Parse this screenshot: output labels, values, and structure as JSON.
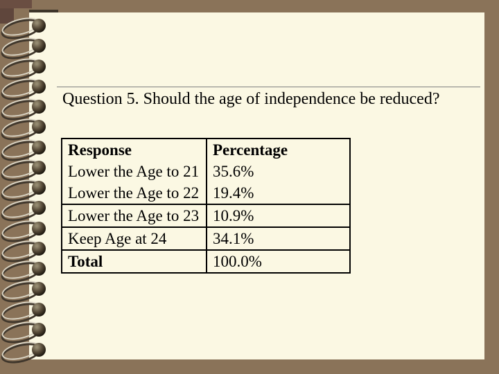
{
  "slide": {
    "title": "Question 5. Should the age of independence be reduced?",
    "table": {
      "header": {
        "response": "Response",
        "percentage": "Percentage"
      },
      "rows": [
        {
          "response": "Lower the Age to 21",
          "percentage": "35.6%"
        },
        {
          "response": "Lower the Age to 22",
          "percentage": "19.4%"
        },
        {
          "response": "Lower the Age to 23",
          "percentage": "10.9%"
        },
        {
          "response": "Keep Age at 24",
          "percentage": "34.1%"
        }
      ],
      "total": {
        "response": "Total",
        "percentage": "100.0%"
      }
    }
  },
  "notebook": {
    "ring_count": 17
  },
  "colors": {
    "background_brown": "#8a7359",
    "paper_cream": "#fbf8e3",
    "text_black": "#000000",
    "rule_gray": "#7f7f7f",
    "table_border": "#000000",
    "cover_corner_dark": "#5f463c"
  },
  "chart_data": {
    "type": "table",
    "title": "Question 5. Should the age of independence be reduced?",
    "columns": [
      "Response",
      "Percentage"
    ],
    "rows": [
      [
        "Lower the Age to 21",
        35.6
      ],
      [
        "Lower the Age to 22",
        19.4
      ],
      [
        "Lower the Age to 23",
        10.9
      ],
      [
        "Keep Age at 24",
        34.1
      ],
      [
        "Total",
        100.0
      ]
    ],
    "unit": "%"
  }
}
